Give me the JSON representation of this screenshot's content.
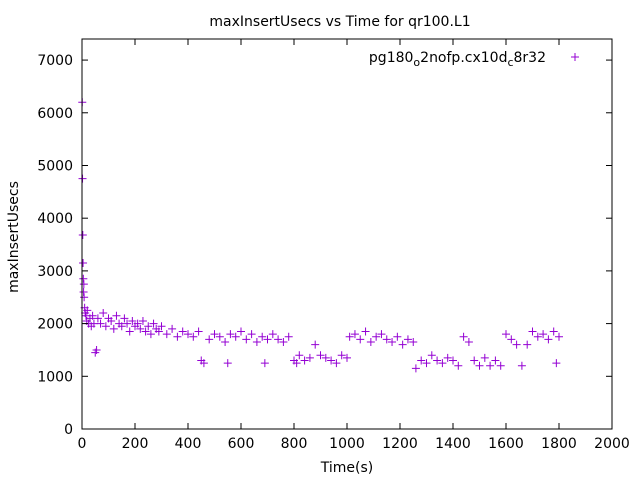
{
  "chart_data": {
    "type": "scatter",
    "title": "maxInsertUsecs vs Time for qr100.L1",
    "xlabel": "Time(s)",
    "ylabel": "maxInsertUsecs",
    "xlim": [
      0,
      2000
    ],
    "ylim": [
      0,
      7400
    ],
    "x_ticks": [
      0,
      200,
      400,
      600,
      800,
      1000,
      1200,
      1400,
      1600,
      1800,
      2000
    ],
    "y_ticks": [
      0,
      1000,
      2000,
      3000,
      4000,
      5000,
      6000,
      7000
    ],
    "grid": false,
    "legend_position": "top-right",
    "marker": "+",
    "color": "#9400d3",
    "series": [
      {
        "name": "pg180_o2nofp.cx10d_c8r32",
        "name_parts": {
          "a": "pg180",
          "b": "o",
          "c": "2nofp.cx10d",
          "d": "c",
          "e": "8r32"
        },
        "points": [
          [
            1,
            6200
          ],
          [
            2,
            4750
          ],
          [
            3,
            3680
          ],
          [
            4,
            3150
          ],
          [
            5,
            2850
          ],
          [
            6,
            2600
          ],
          [
            7,
            2750
          ],
          [
            8,
            2500
          ],
          [
            10,
            2300
          ],
          [
            12,
            2200
          ],
          [
            15,
            2150
          ],
          [
            18,
            2050
          ],
          [
            20,
            2250
          ],
          [
            25,
            2000
          ],
          [
            30,
            2100
          ],
          [
            35,
            1950
          ],
          [
            40,
            2150
          ],
          [
            45,
            2000
          ],
          [
            50,
            1450
          ],
          [
            55,
            1500
          ],
          [
            60,
            2100
          ],
          [
            70,
            2000
          ],
          [
            80,
            2200
          ],
          [
            90,
            1950
          ],
          [
            100,
            2100
          ],
          [
            110,
            2050
          ],
          [
            120,
            1900
          ],
          [
            130,
            2150
          ],
          [
            140,
            2000
          ],
          [
            150,
            1950
          ],
          [
            160,
            2100
          ],
          [
            170,
            2000
          ],
          [
            180,
            1850
          ],
          [
            190,
            2050
          ],
          [
            200,
            1950
          ],
          [
            210,
            2000
          ],
          [
            220,
            1900
          ],
          [
            230,
            2050
          ],
          [
            240,
            1850
          ],
          [
            250,
            1950
          ],
          [
            260,
            1800
          ],
          [
            270,
            2000
          ],
          [
            280,
            1900
          ],
          [
            290,
            1850
          ],
          [
            300,
            1950
          ],
          [
            320,
            1800
          ],
          [
            340,
            1900
          ],
          [
            360,
            1750
          ],
          [
            380,
            1850
          ],
          [
            400,
            1800
          ],
          [
            420,
            1750
          ],
          [
            440,
            1850
          ],
          [
            450,
            1300
          ],
          [
            460,
            1250
          ],
          [
            480,
            1700
          ],
          [
            500,
            1800
          ],
          [
            520,
            1750
          ],
          [
            540,
            1650
          ],
          [
            550,
            1250
          ],
          [
            560,
            1800
          ],
          [
            580,
            1750
          ],
          [
            600,
            1850
          ],
          [
            620,
            1700
          ],
          [
            640,
            1800
          ],
          [
            660,
            1650
          ],
          [
            680,
            1750
          ],
          [
            690,
            1250
          ],
          [
            700,
            1700
          ],
          [
            720,
            1800
          ],
          [
            740,
            1700
          ],
          [
            760,
            1650
          ],
          [
            780,
            1750
          ],
          [
            800,
            1300
          ],
          [
            810,
            1250
          ],
          [
            820,
            1400
          ],
          [
            840,
            1300
          ],
          [
            860,
            1350
          ],
          [
            880,
            1600
          ],
          [
            900,
            1400
          ],
          [
            920,
            1350
          ],
          [
            940,
            1300
          ],
          [
            960,
            1250
          ],
          [
            980,
            1400
          ],
          [
            1000,
            1350
          ],
          [
            1010,
            1750
          ],
          [
            1030,
            1800
          ],
          [
            1050,
            1700
          ],
          [
            1070,
            1850
          ],
          [
            1090,
            1650
          ],
          [
            1110,
            1750
          ],
          [
            1130,
            1800
          ],
          [
            1150,
            1700
          ],
          [
            1170,
            1650
          ],
          [
            1190,
            1750
          ],
          [
            1210,
            1600
          ],
          [
            1230,
            1700
          ],
          [
            1250,
            1650
          ],
          [
            1260,
            1150
          ],
          [
            1280,
            1300
          ],
          [
            1300,
            1250
          ],
          [
            1320,
            1400
          ],
          [
            1340,
            1300
          ],
          [
            1360,
            1250
          ],
          [
            1380,
            1350
          ],
          [
            1400,
            1300
          ],
          [
            1420,
            1200
          ],
          [
            1440,
            1750
          ],
          [
            1460,
            1650
          ],
          [
            1480,
            1300
          ],
          [
            1500,
            1200
          ],
          [
            1520,
            1350
          ],
          [
            1540,
            1200
          ],
          [
            1560,
            1300
          ],
          [
            1580,
            1200
          ],
          [
            1600,
            1800
          ],
          [
            1620,
            1700
          ],
          [
            1640,
            1600
          ],
          [
            1660,
            1200
          ],
          [
            1680,
            1600
          ],
          [
            1700,
            1850
          ],
          [
            1720,
            1750
          ],
          [
            1740,
            1800
          ],
          [
            1760,
            1700
          ],
          [
            1780,
            1850
          ],
          [
            1790,
            1250
          ],
          [
            1800,
            1750
          ]
        ]
      }
    ]
  }
}
